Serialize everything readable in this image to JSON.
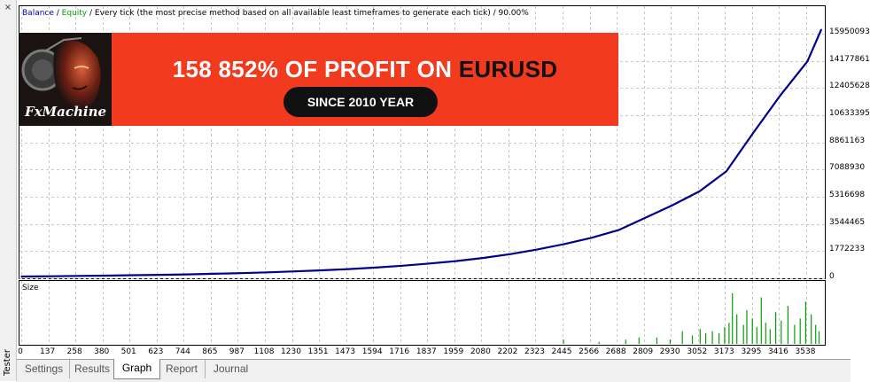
{
  "side": {
    "label": "Tester"
  },
  "legend": {
    "balance": "Balance",
    "sep1": " / ",
    "equity": "Equity",
    "rest": " / Every tick (the most precise method based on all available least timeframes to generate each tick) / 90.00%"
  },
  "banner": {
    "title_white": "158 852% OF PROFIT ON ",
    "title_dark": "EURUSD",
    "pill": "SINCE 2010 YEAR",
    "logo_text": "FxMachine"
  },
  "size_panel": {
    "label": "Size"
  },
  "y_axis_labels": [
    "15950093",
    "14177861",
    "12405628",
    "10633395",
    "8861163",
    "7088930",
    "5316698",
    "3544465",
    "1772233",
    "0"
  ],
  "x_axis_labels": [
    "0",
    "137",
    "258",
    "380",
    "501",
    "623",
    "744",
    "865",
    "987",
    "1108",
    "1230",
    "1351",
    "1473",
    "1594",
    "1716",
    "1837",
    "1959",
    "2080",
    "2202",
    "2323",
    "2445",
    "2566",
    "2688",
    "2809",
    "2930",
    "3052",
    "3173",
    "3295",
    "3416",
    "3538"
  ],
  "tabs": [
    {
      "label": "Settings",
      "active": false
    },
    {
      "label": "Results",
      "active": false
    },
    {
      "label": "Graph",
      "active": true
    },
    {
      "label": "Report",
      "active": false
    },
    {
      "label": "Journal",
      "active": false
    }
  ],
  "colors": {
    "balance": "#00008b",
    "equity": "#00a000",
    "grid": "#c8c8c8",
    "banner": "#f23a1e"
  },
  "chart_data": {
    "type": "line",
    "title": "",
    "xlabel": "",
    "ylabel": "",
    "xlim": [
      0,
      3600
    ],
    "ylim": [
      0,
      17000000
    ],
    "grid": true,
    "series": [
      {
        "name": "Balance",
        "x": [
          0,
          137,
          258,
          380,
          501,
          623,
          744,
          865,
          987,
          1108,
          1230,
          1351,
          1473,
          1594,
          1716,
          1837,
          1959,
          2080,
          2202,
          2323,
          2445,
          2566,
          2688,
          2809,
          2930,
          3052,
          3173,
          3295,
          3416,
          3538,
          3600
        ],
        "values": [
          0,
          20000,
          40000,
          60000,
          85000,
          110000,
          140000,
          180000,
          220000,
          270000,
          330000,
          400000,
          480000,
          580000,
          700000,
          840000,
          1000000,
          1200000,
          1450000,
          1750000,
          2100000,
          2500000,
          3000000,
          3800000,
          4600000,
          5500000,
          6800000,
          9300000,
          11700000,
          13900000,
          15950093
        ]
      }
    ],
    "size": {
      "name": "Size",
      "x": [
        2440,
        2600,
        2720,
        2780,
        2860,
        2920,
        2975,
        3020,
        3055,
        3080,
        3110,
        3140,
        3165,
        3185,
        3200,
        3220,
        3250,
        3265,
        3290,
        3310,
        3330,
        3350,
        3370,
        3395,
        3420,
        3450,
        3480,
        3505,
        3530,
        3555,
        3575,
        3590
      ],
      "values": [
        2,
        1,
        2,
        3,
        3,
        2,
        6,
        4,
        7,
        5,
        6,
        5,
        8,
        10,
        24,
        14,
        9,
        16,
        12,
        8,
        22,
        10,
        7,
        15,
        11,
        18,
        9,
        12,
        20,
        14,
        9,
        6
      ]
    }
  }
}
